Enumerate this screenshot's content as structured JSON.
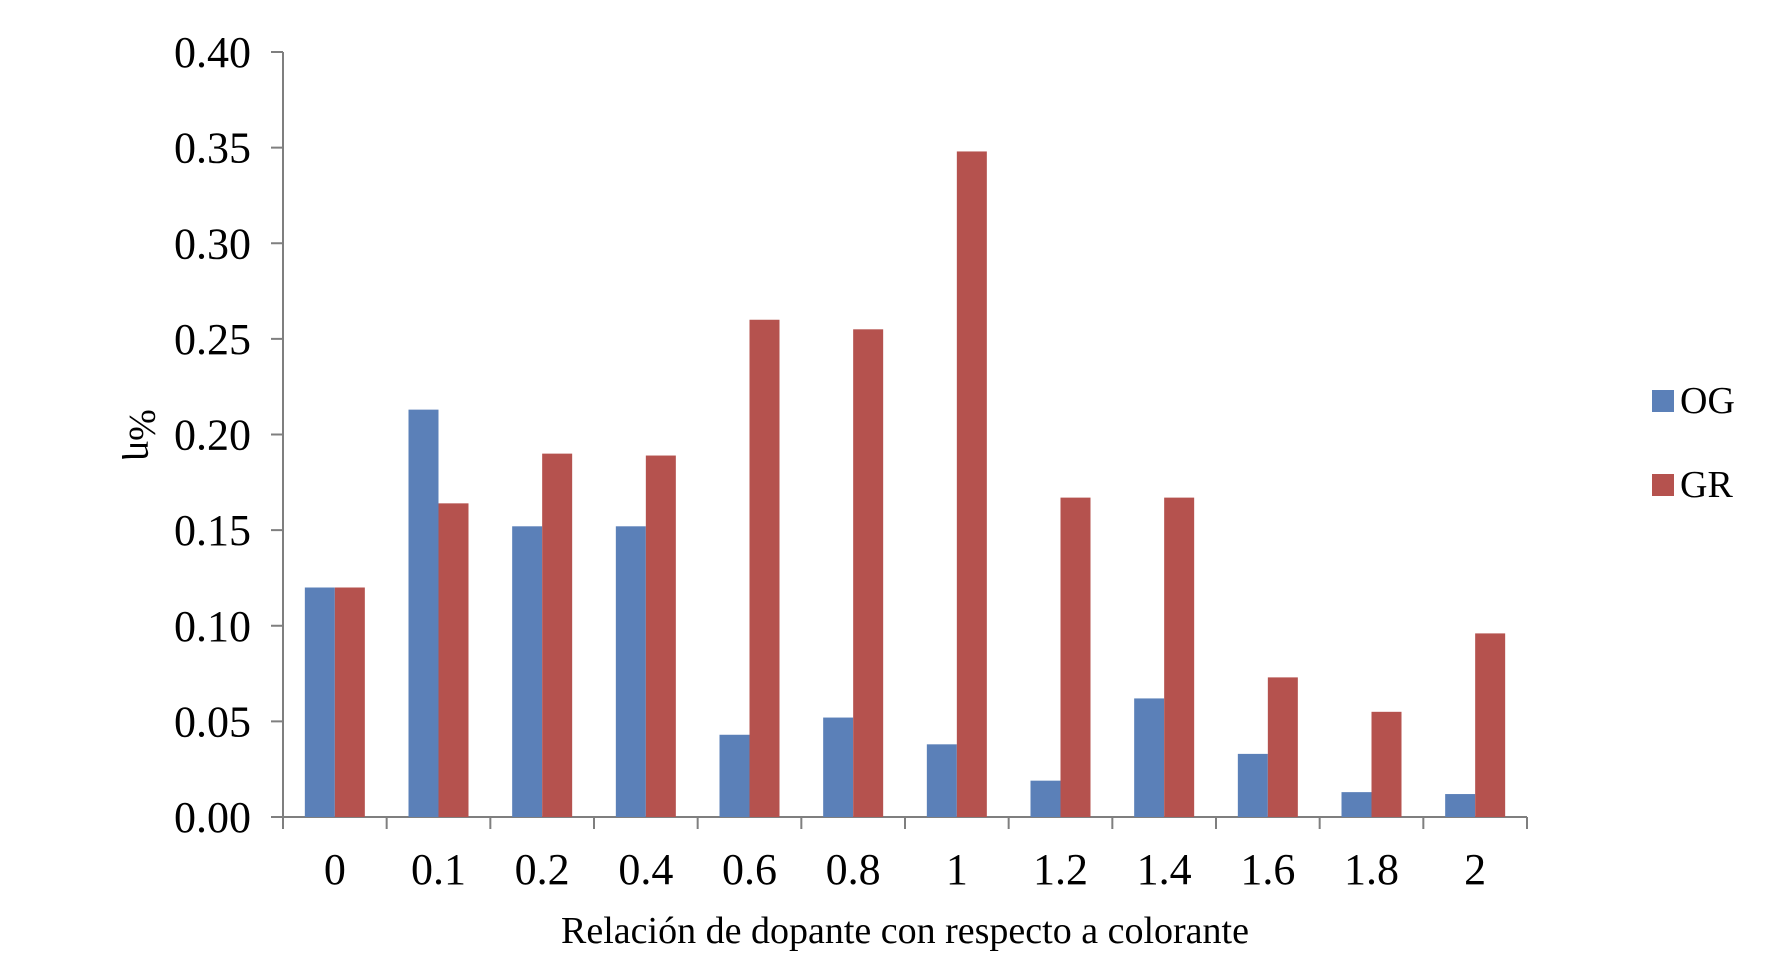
{
  "chart_data": {
    "type": "bar",
    "title": "",
    "xlabel": "Relación de dopante con respecto a colorante",
    "ylabel": "%η",
    "categories": [
      "0",
      "0.1",
      "0.2",
      "0.4",
      "0.6",
      "0.8",
      "1",
      "1.2",
      "1.4",
      "1.6",
      "1.8",
      "2"
    ],
    "series": [
      {
        "name": "OG",
        "color": "#5b80b8",
        "values": [
          0.12,
          0.213,
          0.152,
          0.152,
          0.043,
          0.052,
          0.038,
          0.019,
          0.062,
          0.033,
          0.013,
          0.012
        ]
      },
      {
        "name": "GR",
        "color": "#b5524e",
        "values": [
          0.12,
          0.164,
          0.19,
          0.189,
          0.26,
          0.255,
          0.348,
          0.167,
          0.167,
          0.073,
          0.055,
          0.096
        ]
      }
    ],
    "ylim": [
      0,
      0.4
    ],
    "yticks": [
      "0.00",
      "0.05",
      "0.10",
      "0.15",
      "0.20",
      "0.25",
      "0.30",
      "0.35",
      "0.40"
    ],
    "grid": false,
    "legend_position": "right"
  }
}
